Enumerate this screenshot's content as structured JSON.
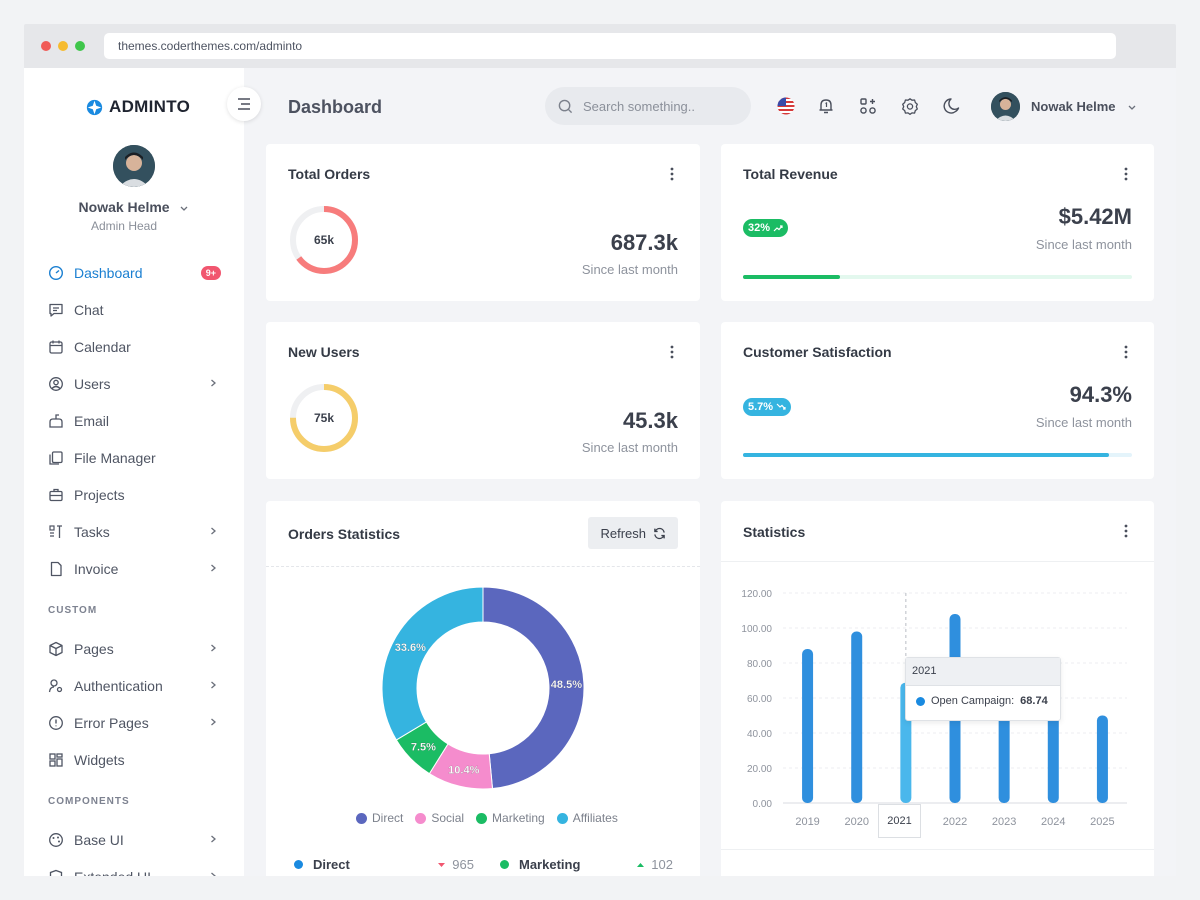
{
  "browser": {
    "url": "themes.coderthemes.com/adminto"
  },
  "brand": {
    "name": "ADMINTO"
  },
  "sidebar": {
    "user_name": "Nowak Helme",
    "user_role": "Admin Head",
    "items": [
      {
        "label": "Dashboard",
        "icon": "dashboard-icon",
        "badge": "9+",
        "active": true
      },
      {
        "label": "Chat",
        "icon": "chat-icon"
      },
      {
        "label": "Calendar",
        "icon": "calendar-icon"
      },
      {
        "label": "Users",
        "icon": "user-circle-icon",
        "chevron": true
      },
      {
        "label": "Email",
        "icon": "mailbox-icon"
      },
      {
        "label": "File Manager",
        "icon": "files-icon"
      },
      {
        "label": "Projects",
        "icon": "briefcase-icon"
      },
      {
        "label": "Tasks",
        "icon": "tasks-icon",
        "chevron": true
      },
      {
        "label": "Invoice",
        "icon": "file-icon",
        "chevron": true
      }
    ],
    "section_custom": "CUSTOM",
    "custom_items": [
      {
        "label": "Pages",
        "icon": "box-icon",
        "chevron": true
      },
      {
        "label": "Authentication",
        "icon": "user-key-icon",
        "chevron": true
      },
      {
        "label": "Error Pages",
        "icon": "alert-circle-icon",
        "chevron": true
      },
      {
        "label": "Widgets",
        "icon": "widgets-icon"
      }
    ],
    "section_components": "COMPONENTS",
    "component_items": [
      {
        "label": "Base UI",
        "icon": "palette-icon",
        "chevron": true
      },
      {
        "label": "Extended UI",
        "icon": "shield-icon",
        "chevron": true
      }
    ]
  },
  "topbar": {
    "title": "Dashboard",
    "search_placeholder": "Search something..",
    "user_name": "Nowak Helme"
  },
  "cards": {
    "total_orders": {
      "title": "Total Orders",
      "ring_label": "65k",
      "ring_fraction": 0.65,
      "value": "687.3k",
      "since": "Since last month",
      "color": "#f77c7c"
    },
    "new_users": {
      "title": "New Users",
      "ring_label": "75k",
      "ring_fraction": 0.75,
      "value": "45.3k",
      "since": "Since last month",
      "color": "#f5cd6a"
    },
    "total_revenue": {
      "title": "Total Revenue",
      "badge": "32%",
      "value": "$5.42M",
      "since": "Since last month",
      "progress": 0.25,
      "color": "#1bbc64",
      "track": "#e3f8ee"
    },
    "customer_satisfaction": {
      "title": "Customer Satisfaction",
      "badge": "5.7%",
      "value": "94.3%",
      "since": "Since last month",
      "progress": 0.94,
      "color": "#35b4e0",
      "track": "#e4f4fb"
    }
  },
  "orders_statistics": {
    "title": "Orders Statistics",
    "refresh_label": "Refresh",
    "stats": [
      {
        "name": "Direct",
        "value": "965",
        "trend": "down",
        "color": "#1a8ae0"
      },
      {
        "name": "Marketing",
        "value": "102",
        "trend": "up",
        "color": "#1bbc64"
      }
    ]
  },
  "statistics": {
    "title": "Statistics",
    "tooltip_year": "2021",
    "tooltip_series": "Open Campaign:",
    "tooltip_value": "68.74",
    "highlight_x": "2021"
  },
  "chart_data": [
    {
      "type": "pie",
      "donut": true,
      "labels": [
        "Direct",
        "Social",
        "Marketing",
        "Affiliates"
      ],
      "values": [
        48.5,
        10.4,
        7.5,
        33.6
      ],
      "data_labels": [
        "48.5%",
        "10.4%",
        "7.5%",
        "33.6%"
      ],
      "colors": [
        "#5b67be",
        "#f58ccd",
        "#1bbc64",
        "#35b4e0"
      ],
      "legend": "bottom"
    },
    {
      "type": "bar",
      "categories": [
        "2019",
        "2020",
        "2021",
        "2022",
        "2023",
        "2024",
        "2025"
      ],
      "series": [
        {
          "name": "Open Campaign",
          "values": [
            88,
            98,
            68.74,
            108,
            58,
            83,
            50
          ]
        }
      ],
      "ylim": [
        0,
        120
      ],
      "yticks": [
        "0.00",
        "20.00",
        "40.00",
        "60.00",
        "80.00",
        "100.00",
        "120.00"
      ],
      "grid": true,
      "color": "#2f8fde",
      "highlight_color": "#4ab7ec"
    }
  ]
}
